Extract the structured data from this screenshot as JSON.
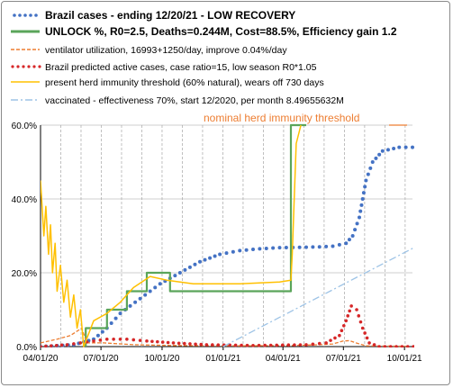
{
  "chart_data": {
    "type": "line",
    "x_ticks": [
      "04/01/20",
      "07/01/20",
      "10/01/20",
      "01/01/21",
      "04/01/21",
      "07/01/21",
      "10/01/21"
    ],
    "y_ticks": [
      "0.0%",
      "20.0%",
      "40.0%",
      "60.0%"
    ],
    "ylim": [
      0,
      60
    ],
    "annotation": "nominal herd immunity threshold",
    "legend": [
      "Brazil cases - ending 12/20/21  - LOW RECOVERY",
      "UNLOCK %, R0=2.5,  Deaths=0.244M, Cost=88.5%, Efficiency gain 1.2",
      "ventilator utilization,  16993+1250/day, improve 0.04%/day",
      "Brazil predicted active cases, case ratio=15, low season R0*1.05",
      "present herd immunity  threshold (60% natural),  wears off 730 days",
      "vaccinated - effectiveness 70%, start 12/2020, per month 8.49655632M"
    ],
    "colors": {
      "cases": "#4472c4",
      "unlock": "#5aa55a",
      "ventilator": "#ed7d31",
      "active": "#d62728",
      "herd": "#ffc000",
      "vaccinated": "#9dc3e6",
      "grid_dash": "#a6a6a6",
      "annotation": "#ed7d31"
    },
    "series": [
      {
        "key": "cases",
        "style": "dots",
        "points": [
          [
            0,
            0
          ],
          [
            50,
            0.5
          ],
          [
            80,
            2
          ],
          [
            100,
            5
          ],
          [
            120,
            9
          ],
          [
            150,
            13
          ],
          [
            180,
            17
          ],
          [
            210,
            20
          ],
          [
            240,
            23
          ],
          [
            270,
            25
          ],
          [
            300,
            26
          ],
          [
            330,
            26.5
          ],
          [
            360,
            26.8
          ],
          [
            390,
            26.9
          ],
          [
            420,
            27
          ],
          [
            440,
            27.2
          ],
          [
            460,
            28
          ],
          [
            470,
            30
          ],
          [
            480,
            35
          ],
          [
            490,
            45
          ],
          [
            500,
            50
          ],
          [
            515,
            53
          ],
          [
            540,
            54
          ],
          [
            570,
            54
          ]
        ]
      },
      {
        "key": "unlock",
        "style": "solid",
        "points": [
          [
            68,
            0
          ],
          [
            68,
            5
          ],
          [
            100,
            5
          ],
          [
            100,
            10
          ],
          [
            130,
            10
          ],
          [
            130,
            15
          ],
          [
            160,
            15
          ],
          [
            160,
            20
          ],
          [
            195,
            20
          ],
          [
            195,
            15
          ],
          [
            377,
            15
          ],
          [
            377,
            60
          ],
          [
            400,
            60
          ]
        ]
      },
      {
        "key": "ventilator",
        "style": "dash",
        "points": [
          [
            0,
            1
          ],
          [
            25,
            2
          ],
          [
            45,
            3
          ],
          [
            62,
            5
          ],
          [
            70,
            1
          ],
          [
            95,
            1
          ],
          [
            140,
            0.5
          ],
          [
            200,
            0.3
          ],
          [
            300,
            0.2
          ],
          [
            380,
            0.3
          ],
          [
            420,
            0.5
          ],
          [
            440,
            0.7
          ],
          [
            455,
            1.5
          ],
          [
            465,
            1.6
          ],
          [
            475,
            1
          ],
          [
            490,
            0.2
          ],
          [
            550,
            0.1
          ]
        ]
      },
      {
        "key": "active",
        "style": "dots",
        "points": [
          [
            0,
            0
          ],
          [
            40,
            0.5
          ],
          [
            60,
            1
          ],
          [
            80,
            1.5
          ],
          [
            100,
            2
          ],
          [
            130,
            2
          ],
          [
            160,
            1.5
          ],
          [
            200,
            1
          ],
          [
            250,
            0.5
          ],
          [
            320,
            0.3
          ],
          [
            400,
            0.5
          ],
          [
            430,
            1
          ],
          [
            450,
            3
          ],
          [
            460,
            7
          ],
          [
            468,
            11
          ],
          [
            476,
            10
          ],
          [
            485,
            5
          ],
          [
            495,
            1
          ],
          [
            510,
            0
          ],
          [
            570,
            0
          ]
        ]
      },
      {
        "key": "herd",
        "style": "solid",
        "points": [
          [
            0,
            45
          ],
          [
            5,
            30
          ],
          [
            8,
            38
          ],
          [
            12,
            25
          ],
          [
            15,
            33
          ],
          [
            18,
            20
          ],
          [
            22,
            28
          ],
          [
            25,
            15
          ],
          [
            30,
            22
          ],
          [
            35,
            12
          ],
          [
            40,
            18
          ],
          [
            45,
            8
          ],
          [
            50,
            14
          ],
          [
            55,
            5
          ],
          [
            60,
            10
          ],
          [
            65,
            0
          ],
          [
            80,
            7
          ],
          [
            100,
            9
          ],
          [
            120,
            12
          ],
          [
            140,
            16
          ],
          [
            165,
            19
          ],
          [
            190,
            18
          ],
          [
            230,
            17
          ],
          [
            300,
            17
          ],
          [
            360,
            17.5
          ],
          [
            377,
            18
          ],
          [
            379,
            25
          ],
          [
            385,
            55
          ],
          [
            392,
            60
          ]
        ]
      },
      {
        "key": "vaccinated",
        "style": "dashdot",
        "points": [
          [
            275,
            0
          ],
          [
            575,
            28
          ]
        ]
      }
    ]
  }
}
